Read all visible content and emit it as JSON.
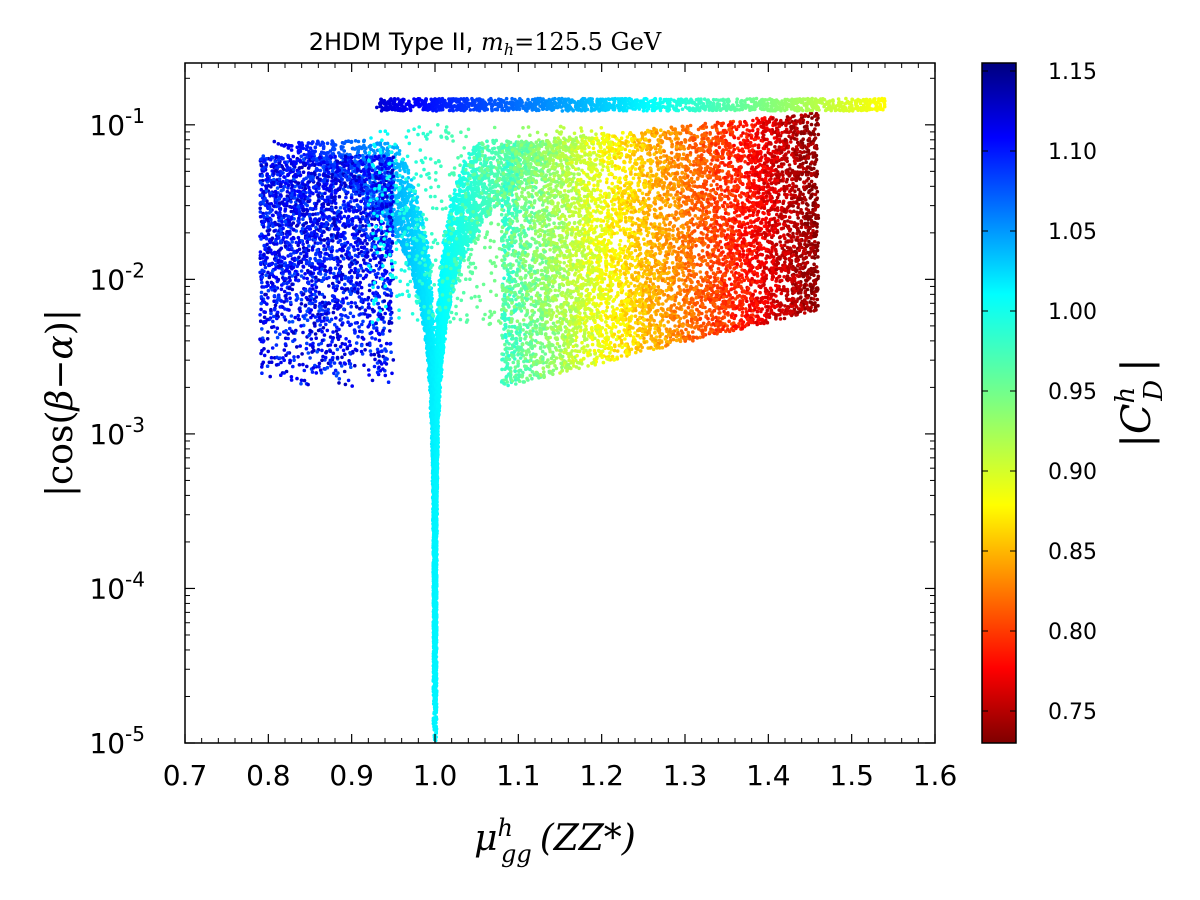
{
  "chart_data": {
    "type": "scatter",
    "title": {
      "prefix": "2HDM Type II,",
      "mass_symbol": "m",
      "mass_subscript": "h",
      "equals": "=",
      "mass_value": "125.5 GeV"
    },
    "xlabel": {
      "symbol": "μ",
      "superscript": "h",
      "subscript": "gg",
      "argument": "(ZZ*)"
    },
    "ylabel": {
      "text_start": "|cos(",
      "beta": "β",
      "minus": "−",
      "alpha": "α",
      "text_end": ")|"
    },
    "colorbar_label": {
      "bar": "|",
      "symbol": "C",
      "superscript": "h",
      "subscript": "D",
      "bar_end": "|"
    },
    "xlim": [
      0.7,
      1.6
    ],
    "ylim_log10": [
      -5,
      -0.6
    ],
    "xscale": "linear",
    "yscale": "log",
    "x_ticks": [
      "0.7",
      "0.8",
      "0.9",
      "1.0",
      "1.1",
      "1.2",
      "1.3",
      "1.4",
      "1.5",
      "1.6"
    ],
    "y_ticks": [
      {
        "base": "10",
        "exp": "-5",
        "log10": -5
      },
      {
        "base": "10",
        "exp": "-4",
        "log10": -4
      },
      {
        "base": "10",
        "exp": "-3",
        "log10": -3
      },
      {
        "base": "10",
        "exp": "-2",
        "log10": -2
      },
      {
        "base": "10",
        "exp": "-1",
        "log10": -1
      }
    ],
    "colorbar": {
      "colormap": "jet_reversed",
      "range": [
        0.73,
        1.155
      ],
      "ticks": [
        "0.75",
        "0.80",
        "0.85",
        "0.90",
        "0.95",
        "1.00",
        "1.05",
        "1.10",
        "1.15"
      ]
    },
    "point_count_estimate": 22000,
    "regions": [
      {
        "name": "left-branch",
        "x_range": [
          0.78,
          1.0
        ],
        "log10_cos_range": [
          -5,
          -1.16
        ],
        "color_value_range": [
          1.02,
          1.12
        ]
      },
      {
        "name": "right-branch",
        "x_range": [
          1.0,
          1.5
        ],
        "log10_cos_range": [
          -5,
          -1.1
        ],
        "color_value_range": [
          0.99,
          0.9
        ]
      },
      {
        "name": "right-fill",
        "x_range": [
          1.1,
          1.46
        ],
        "log10_cos_range": [
          -2.55,
          -1.0
        ],
        "color_value_range": [
          0.93,
          0.74
        ]
      },
      {
        "name": "top-band",
        "x_range": [
          0.93,
          1.54
        ],
        "log10_cos_value": -0.87,
        "color_value_range": [
          1.12,
          0.9
        ]
      },
      {
        "name": "upper-scatter",
        "x_range": [
          0.92,
          1.2
        ],
        "log10_cos_range": [
          -2.3,
          -1.0
        ],
        "color_value_range": [
          1.0,
          0.92
        ]
      }
    ]
  }
}
